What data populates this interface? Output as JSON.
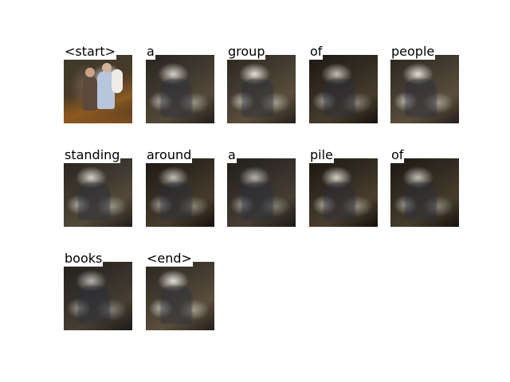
{
  "tokens": [
    {
      "word": "<start>"
    },
    {
      "word": "a"
    },
    {
      "word": "group"
    },
    {
      "word": "of"
    },
    {
      "word": "people"
    },
    {
      "word": "standing"
    },
    {
      "word": "around"
    },
    {
      "word": "a"
    },
    {
      "word": "pile"
    },
    {
      "word": "of"
    },
    {
      "word": "books"
    },
    {
      "word": "<end>"
    }
  ]
}
